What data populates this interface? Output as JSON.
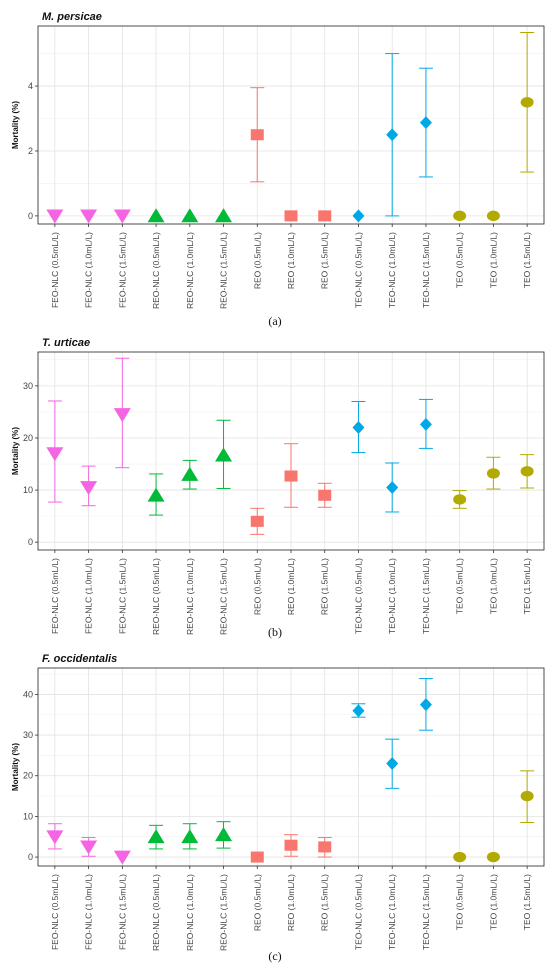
{
  "figure": {
    "categories": [
      "FEO-NLC (0.5mL/L)",
      "FEO-NLC (1.0mL/L)",
      "FEO-NLC (1.5mL/L)",
      "REO-NLC (0.5mL/L)",
      "REO-NLC (1.0mL/L)",
      "REO-NLC (1.5mL/L)",
      "REO (0.5mL/L)",
      "REO (1.0mL/L)",
      "REO (1.5mL/L)",
      "TEO-NLC (0.5mL/L)",
      "TEO-NLC (1.0mL/L)",
      "TEO-NLC (1.5mL/L)",
      "TEO (0.5mL/L)",
      "TEO (1.0mL/L)",
      "TEO (1.5mL/L)"
    ],
    "groups": [
      {
        "label": "FEO-NLC",
        "color": "#F564E3",
        "marker": "triangle-down"
      },
      {
        "label": "REO-NLC",
        "color": "#00BA38",
        "marker": "triangle-up"
      },
      {
        "label": "REO",
        "color": "#F8766D",
        "marker": "square"
      },
      {
        "label": "TEO-NLC",
        "color": "#00A9E6",
        "marker": "diamond"
      },
      {
        "label": "TEO",
        "color": "#B2AA00",
        "marker": "circle"
      }
    ],
    "group_index": [
      0,
      0,
      0,
      1,
      1,
      1,
      2,
      2,
      2,
      3,
      3,
      3,
      4,
      4,
      4
    ]
  },
  "chart_data": [
    {
      "type": "scatter",
      "title": "M. persicae",
      "caption": "(a)",
      "ylabel": "Mortality (%)",
      "xlabel": "",
      "ylim": [
        -0.25,
        5.85
      ],
      "yticks": [
        0,
        2,
        4
      ],
      "grid": true,
      "values": [
        0,
        0,
        0,
        0,
        0,
        0,
        2.5,
        0,
        0,
        0,
        2.5,
        2.875,
        0,
        0,
        3.5
      ],
      "lower": [
        0,
        0,
        0,
        0,
        0,
        0,
        1.05,
        0,
        0,
        0,
        0,
        1.2,
        0,
        0,
        1.35
      ],
      "upper": [
        0,
        0,
        0,
        0,
        0,
        0,
        3.95,
        0,
        0,
        0,
        5.0,
        4.55,
        0,
        0,
        5.65
      ]
    },
    {
      "type": "scatter",
      "title": "T. urticae",
      "caption": "(b)",
      "ylabel": "Mortality (%)",
      "xlabel": "",
      "ylim": [
        -1.5,
        36.5
      ],
      "yticks": [
        0,
        10,
        20,
        30
      ],
      "grid": true,
      "values": [
        17.0,
        10.5,
        24.5,
        9.0,
        13.0,
        16.7,
        4.0,
        12.7,
        9.0,
        22.0,
        10.5,
        22.6,
        8.2,
        13.2,
        13.6
      ],
      "lower": [
        7.7,
        7.0,
        14.3,
        5.2,
        10.2,
        10.3,
        1.5,
        6.7,
        6.7,
        17.2,
        5.8,
        18.0,
        6.5,
        10.2,
        10.4
      ],
      "upper": [
        27.1,
        14.6,
        35.3,
        13.1,
        15.7,
        23.4,
        6.5,
        18.9,
        11.3,
        27.0,
        15.2,
        27.4,
        9.9,
        16.3,
        16.8
      ]
    },
    {
      "type": "scatter",
      "title": "F. occidentalis",
      "caption": "(c)",
      "ylabel": "Mortality (%)",
      "xlabel": "",
      "ylim": [
        -2.2,
        46.5
      ],
      "yticks": [
        0,
        10,
        20,
        30,
        40
      ],
      "grid": true,
      "values": [
        5.0,
        2.5,
        0,
        5.0,
        5.0,
        5.5,
        0,
        2.9,
        2.5,
        36.0,
        23.0,
        37.5,
        0,
        0,
        15.0
      ],
      "lower": [
        2.0,
        0.2,
        0,
        2.0,
        2.0,
        2.2,
        0,
        0.2,
        0,
        34.4,
        16.9,
        31.2,
        0,
        0,
        8.5
      ],
      "upper": [
        8.2,
        4.8,
        0,
        7.8,
        8.2,
        8.7,
        0,
        5.5,
        4.8,
        37.7,
        29.0,
        43.9,
        0,
        0,
        21.2
      ]
    }
  ]
}
